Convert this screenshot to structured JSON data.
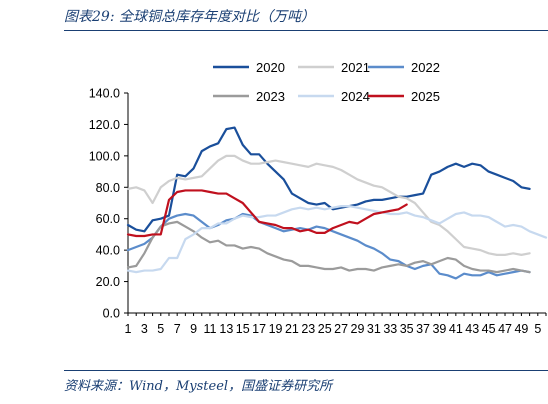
{
  "header": {
    "title": "图表29:  全球铜总库存年度对比（万吨）"
  },
  "footer": {
    "source": "资料来源：Wind，Mysteel，国盛证券研究所"
  },
  "chart_data": {
    "type": "line",
    "xlabel": "",
    "ylabel": "",
    "ylim": [
      0,
      140
    ],
    "yticks": [
      "0.0",
      "20.0",
      "40.0",
      "60.0",
      "80.0",
      "100.0",
      "120.0",
      "140.0"
    ],
    "x": [
      1,
      2,
      3,
      4,
      5,
      6,
      7,
      8,
      9,
      10,
      11,
      12,
      13,
      14,
      15,
      16,
      17,
      18,
      19,
      20,
      21,
      22,
      23,
      24,
      25,
      26,
      27,
      28,
      29,
      30,
      31,
      32,
      33,
      34,
      35,
      36,
      37,
      38,
      39,
      40,
      41,
      42,
      43,
      44,
      45,
      46,
      47,
      48,
      49,
      50,
      51,
      52
    ],
    "xtick_labels": [
      "1",
      "3",
      "5",
      "7",
      "9",
      "11",
      "13",
      "15",
      "17",
      "19",
      "21",
      "23",
      "25",
      "27",
      "29",
      "31",
      "33",
      "35",
      "37",
      "39",
      "41",
      "43",
      "45",
      "47",
      "49",
      "5"
    ],
    "grid": false,
    "legend_position": "top",
    "series": [
      {
        "name": "2020",
        "color": "#1a4f9b",
        "width": 2.2,
        "values": [
          56,
          53,
          52,
          59,
          60,
          62,
          88,
          87,
          92,
          103,
          106,
          108,
          117,
          118,
          107,
          101,
          101,
          95,
          90,
          85,
          76,
          73,
          70,
          69,
          70,
          66,
          67,
          68,
          69,
          71,
          72,
          72,
          73,
          74,
          74,
          75,
          76,
          88,
          90,
          93,
          95,
          93,
          95,
          94,
          90,
          88,
          86,
          84,
          80,
          79,
          null,
          null
        ]
      },
      {
        "name": "2021",
        "color": "#cfcfcf",
        "width": 2.2,
        "values": [
          79,
          80,
          78,
          70,
          80,
          84,
          86,
          85,
          86,
          87,
          92,
          97,
          100,
          100,
          97,
          95,
          95,
          96,
          97,
          96,
          95,
          94,
          93,
          95,
          94,
          93,
          91,
          88,
          85,
          83,
          81,
          80,
          77,
          74,
          73,
          70,
          64,
          58,
          56,
          52,
          47,
          42,
          41,
          40,
          38,
          37,
          37,
          38,
          37,
          38,
          null,
          null
        ]
      },
      {
        "name": "2022",
        "color": "#5b8ccb",
        "width": 2.2,
        "values": [
          40,
          42,
          44,
          48,
          55,
          60,
          62,
          63,
          62,
          58,
          54,
          56,
          59,
          60,
          63,
          62,
          58,
          56,
          54,
          52,
          53,
          54,
          53,
          55,
          54,
          52,
          50,
          48,
          46,
          43,
          41,
          38,
          34,
          33,
          30,
          28,
          30,
          31,
          25,
          24,
          22,
          25,
          24,
          24,
          26,
          24,
          25,
          26,
          27,
          26,
          null,
          null
        ]
      },
      {
        "name": "2023",
        "color": "#9b9b9b",
        "width": 2.2,
        "values": [
          29,
          30,
          38,
          48,
          55,
          57,
          58,
          55,
          52,
          48,
          45,
          46,
          43,
          43,
          41,
          42,
          41,
          38,
          36,
          34,
          33,
          30,
          30,
          29,
          28,
          28,
          29,
          27,
          28,
          28,
          27,
          29,
          30,
          31,
          30,
          32,
          33,
          31,
          33,
          35,
          34,
          30,
          28,
          27,
          27,
          26,
          27,
          28,
          27,
          26,
          null,
          null
        ]
      },
      {
        "name": "2024",
        "color": "#c7d9ef",
        "width": 2.2,
        "values": [
          27,
          26,
          27,
          27,
          28,
          35,
          35,
          47,
          50,
          54,
          54,
          57,
          57,
          60,
          62,
          61,
          61,
          62,
          62,
          64,
          66,
          67,
          66,
          67,
          66,
          67,
          68,
          68,
          67,
          66,
          65,
          64,
          63,
          63,
          64,
          62,
          61,
          59,
          57,
          60,
          63,
          64,
          62,
          62,
          61,
          58,
          55,
          56,
          55,
          52,
          50,
          48
        ]
      },
      {
        "name": "2025",
        "color": "#c0101e",
        "width": 2.2,
        "values": [
          50,
          49,
          49,
          50,
          50,
          72,
          77,
          78,
          78,
          78,
          77,
          76,
          76,
          73,
          70,
          64,
          58,
          57,
          56,
          54,
          54,
          52,
          53,
          51,
          51,
          54,
          56,
          58,
          57,
          60,
          63,
          64,
          65,
          66,
          69,
          null,
          null,
          null,
          null,
          null,
          null,
          null,
          null,
          null,
          null,
          null,
          null,
          null,
          null,
          null,
          null,
          null
        ]
      }
    ]
  }
}
